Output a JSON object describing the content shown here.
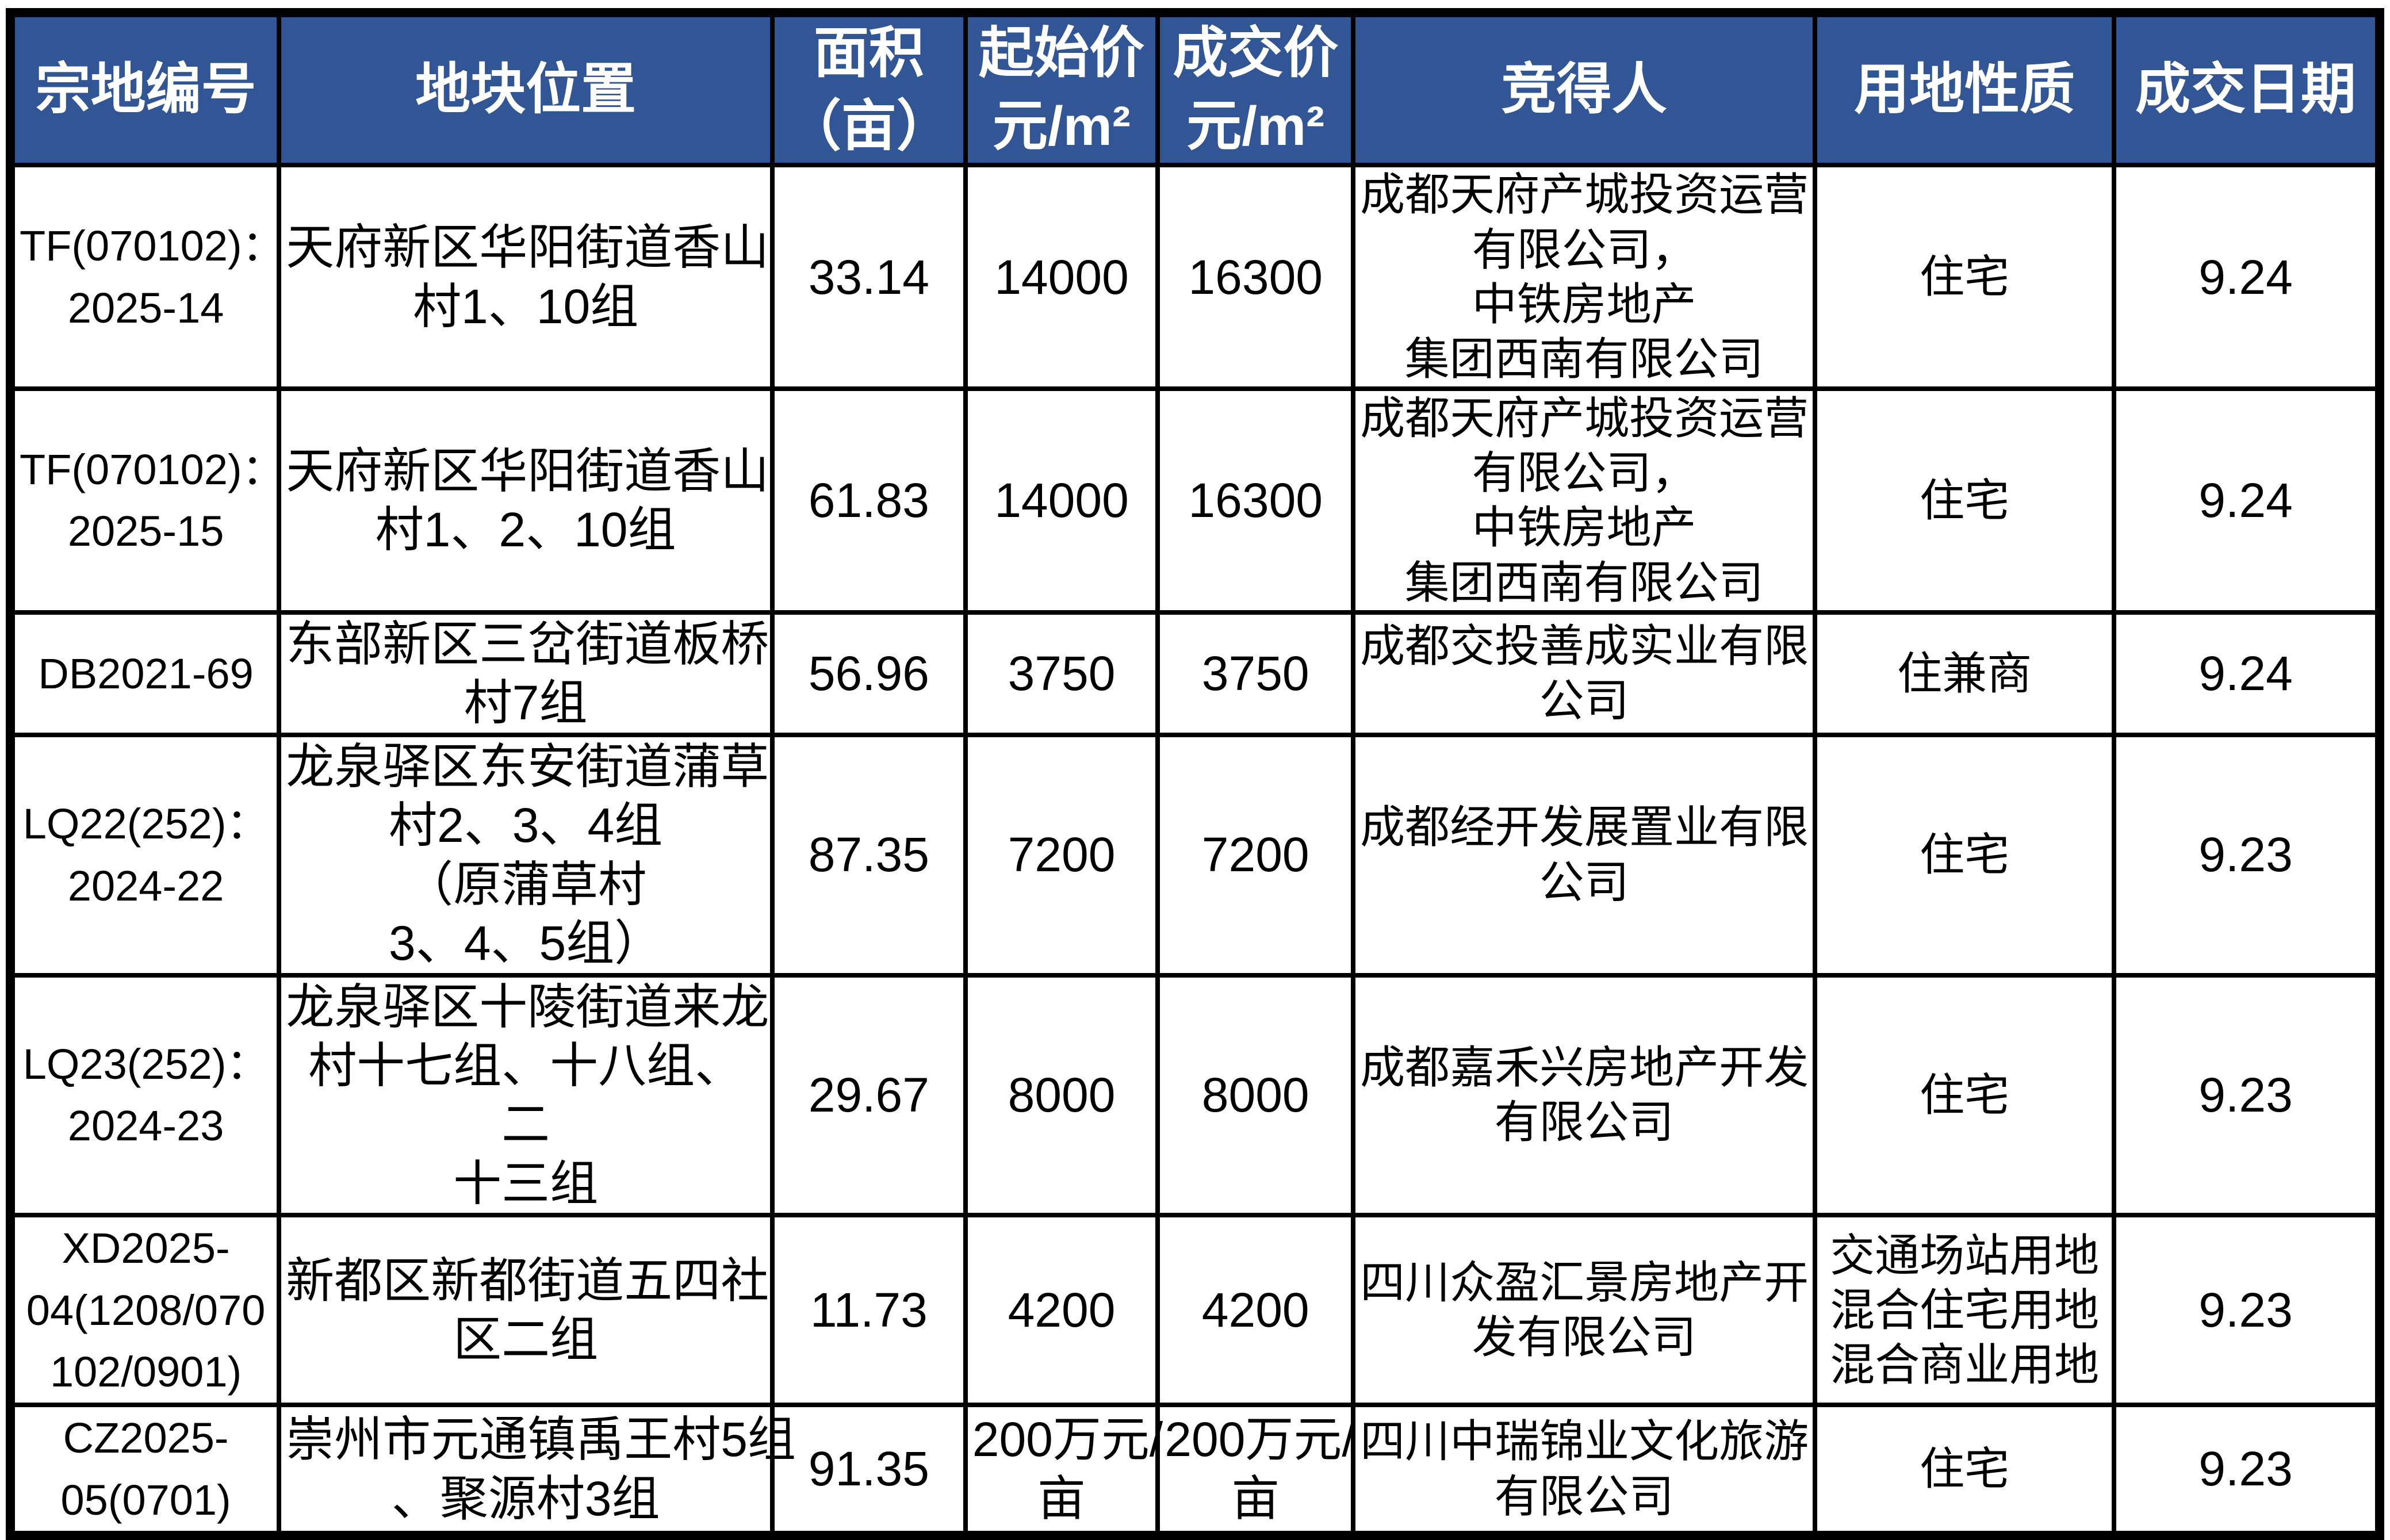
{
  "colors": {
    "header_bg": "#315595",
    "header_text": "#ffffff",
    "border": "#000000",
    "cell_text": "#000000"
  },
  "table": {
    "headers": [
      "宗地编号",
      "地块位置",
      "面积\n（亩）",
      "起始价\n元/m²",
      "成交价\n元/m²",
      "竞得人",
      "用地性质",
      "成交日期"
    ],
    "rows": [
      [
        "TF(070102)：\n2025-14",
        "天府新区华阳街道香山\n村1、10组",
        "33.14",
        "14000",
        "16300",
        "成都天府产城投资运营\n有限公司，中铁房地产\n集团西南有限公司",
        "住宅",
        "9.24"
      ],
      [
        "TF(070102)：\n2025-15",
        "天府新区华阳街道香山\n村1、2、10组",
        "61.83",
        "14000",
        "16300",
        "成都天府产城投资运营\n有限公司，中铁房地产\n集团西南有限公司",
        "住宅",
        "9.24"
      ],
      [
        "DB2021-69",
        "东部新区三岔街道板桥\n村7组",
        "56.96",
        "3750",
        "3750",
        "成都交投善成实业有限\n公司",
        "住兼商",
        "9.24"
      ],
      [
        "LQ22(252)：\n2024-22",
        "龙泉驿区东安街道蒲草\n村2、3、4组（原蒲草村\n3、4、5组）",
        "87.35",
        "7200",
        "7200",
        "成都经开发展置业有限\n公司",
        "住宅",
        "9.23"
      ],
      [
        "LQ23(252)：\n2024-23",
        "龙泉驿区十陵街道来龙\n村十七组、十八组、二\n十三组",
        "29.67",
        "8000",
        "8000",
        "成都嘉禾兴房地产开发\n有限公司",
        "住宅",
        "9.23"
      ],
      [
        "XD2025-\n04(1208/070\n102/0901)",
        "新都区新都街道五四社\n区二组",
        "11.73",
        "4200",
        "4200",
        "四川众盈汇景房地产开\n发有限公司",
        "交通场站用地\n混合住宅用地\n混合商业用地",
        "9.23"
      ],
      [
        "CZ2025-\n05(0701)",
        "崇州市元通镇禹王村5组\n、聚源村3组",
        "91.35",
        "200万元/\n亩",
        "200万元/\n亩",
        "四川中瑞锦业文化旅游\n有限公司",
        "住宅",
        "9.23"
      ]
    ]
  }
}
